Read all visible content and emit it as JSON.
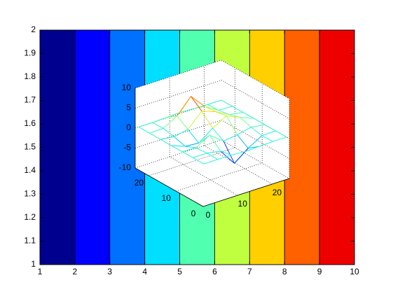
{
  "chart_data": [
    {
      "type": "bands",
      "x": [
        1,
        2,
        3,
        4,
        5,
        6,
        7,
        8,
        9,
        10
      ],
      "colors": [
        "#00008f",
        "#0000ff",
        "#0070ff",
        "#00dfff",
        "#50ffaf",
        "#bfff40",
        "#ffcf00",
        "#ff6000",
        "#ef0000"
      ],
      "xlim": [
        1,
        10
      ],
      "ylim": [
        1,
        2
      ],
      "xticks": [
        1,
        2,
        3,
        4,
        5,
        6,
        7,
        8,
        9,
        10
      ],
      "yticks": [
        1,
        1.1,
        1.2,
        1.3,
        1.4,
        1.5,
        1.6,
        1.7,
        1.8,
        1.9,
        2
      ]
    },
    {
      "type": "mesh",
      "x": [
        1,
        5,
        9,
        13,
        17,
        21,
        25
      ],
      "y": [
        1,
        5,
        9,
        13,
        17,
        21,
        25
      ],
      "z": [
        [
          0,
          0.01,
          -0.03,
          -0.25,
          -0.11,
          0,
          0
        ],
        [
          0,
          0.05,
          -0.59,
          -4.76,
          -2.09,
          -0.06,
          0
        ],
        [
          0,
          -0.13,
          1.85,
          -0.73,
          -0.27,
          0.5,
          0.01
        ],
        [
          -0.04,
          -1.33,
          -1.65,
          0.98,
          2.94,
          1.41,
          0.03
        ],
        [
          0,
          -0.48,
          0.23,
          3.69,
          2.44,
          0.58,
          0.01
        ],
        [
          0,
          0.08,
          2.08,
          5.86,
          2.2,
          0.13,
          0
        ],
        [
          0,
          0,
          0.11,
          0.3,
          0.11,
          0,
          0
        ]
      ],
      "xlim": [
        0,
        25
      ],
      "ylim": [
        0,
        25
      ],
      "zlim": [
        -10,
        10
      ],
      "xticks": [
        0,
        10,
        20
      ],
      "yticks": [
        0,
        10,
        20
      ],
      "zticks": [
        -10,
        -5,
        0,
        5,
        10
      ]
    }
  ]
}
